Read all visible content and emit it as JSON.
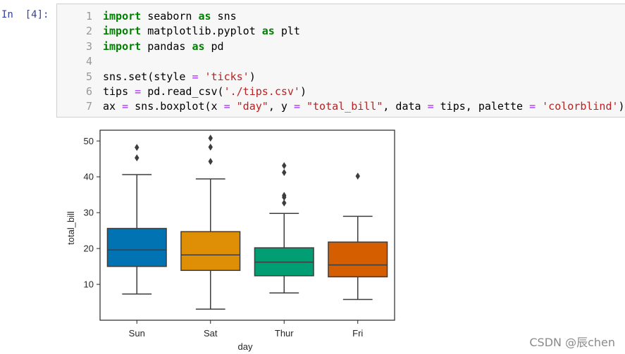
{
  "cell": {
    "prompt": "In  [4]:",
    "lines": [
      {
        "no": "1",
        "tokens": [
          [
            "kw",
            "import"
          ],
          [
            "t",
            " seaborn "
          ],
          [
            "kw",
            "as"
          ],
          [
            "t",
            " sns"
          ]
        ]
      },
      {
        "no": "2",
        "tokens": [
          [
            "kw",
            "import"
          ],
          [
            "t",
            " matplotlib.pyplot "
          ],
          [
            "kw",
            "as"
          ],
          [
            "t",
            " plt"
          ]
        ]
      },
      {
        "no": "3",
        "tokens": [
          [
            "kw",
            "import"
          ],
          [
            "t",
            " pandas "
          ],
          [
            "kw",
            "as"
          ],
          [
            "t",
            " pd"
          ]
        ]
      },
      {
        "no": "4",
        "tokens": []
      },
      {
        "no": "5",
        "tokens": [
          [
            "t",
            "sns.set(style "
          ],
          [
            "op",
            "="
          ],
          [
            "t",
            " "
          ],
          [
            "str",
            "'ticks'"
          ],
          [
            "t",
            ")"
          ]
        ]
      },
      {
        "no": "6",
        "tokens": [
          [
            "t",
            "tips "
          ],
          [
            "op",
            "="
          ],
          [
            "t",
            " pd.read_csv("
          ],
          [
            "str",
            "'./tips.csv'"
          ],
          [
            "t",
            ")"
          ]
        ]
      },
      {
        "no": "7",
        "tokens": [
          [
            "t",
            "ax "
          ],
          [
            "op",
            "="
          ],
          [
            "t",
            " sns.boxplot(x "
          ],
          [
            "op",
            "="
          ],
          [
            "t",
            " "
          ],
          [
            "str",
            "\"day\""
          ],
          [
            "t",
            ", y "
          ],
          [
            "op",
            "="
          ],
          [
            "t",
            " "
          ],
          [
            "str",
            "\"total_bill\""
          ],
          [
            "t",
            ", data "
          ],
          [
            "op",
            "="
          ],
          [
            "t",
            " tips, palette "
          ],
          [
            "op",
            "="
          ],
          [
            "t",
            " "
          ],
          [
            "str",
            "'colorblind'"
          ],
          [
            "t",
            ")"
          ]
        ]
      }
    ]
  },
  "chart_data": {
    "type": "box",
    "xlabel": "day",
    "ylabel": "total_bill",
    "ylim": [
      0,
      53
    ],
    "yticks": [
      10,
      20,
      30,
      40,
      50
    ],
    "categories": [
      "Sun",
      "Sat",
      "Thur",
      "Fri"
    ],
    "boxes": [
      {
        "name": "Sun",
        "color": "#0173b2",
        "whisker_low": 7.3,
        "q1": 15.0,
        "median": 19.6,
        "q3": 25.6,
        "whisker_high": 40.6,
        "outliers": [
          45.3,
          48.2
        ]
      },
      {
        "name": "Sat",
        "color": "#de8f05",
        "whisker_low": 3.1,
        "q1": 13.9,
        "median": 18.2,
        "q3": 24.7,
        "whisker_high": 39.4,
        "outliers": [
          44.3,
          48.3,
          50.8
        ]
      },
      {
        "name": "Thur",
        "color": "#029e73",
        "whisker_low": 7.6,
        "q1": 12.4,
        "median": 16.2,
        "q3": 20.2,
        "whisker_high": 29.8,
        "outliers": [
          32.7,
          34.3,
          34.8,
          41.2,
          43.1
        ]
      },
      {
        "name": "Fri",
        "color": "#d55e00",
        "whisker_low": 5.8,
        "q1": 12.1,
        "median": 15.4,
        "q3": 21.8,
        "whisker_high": 28.97,
        "outliers": [
          40.2
        ]
      }
    ]
  },
  "watermark": "CSDN @辰chen"
}
